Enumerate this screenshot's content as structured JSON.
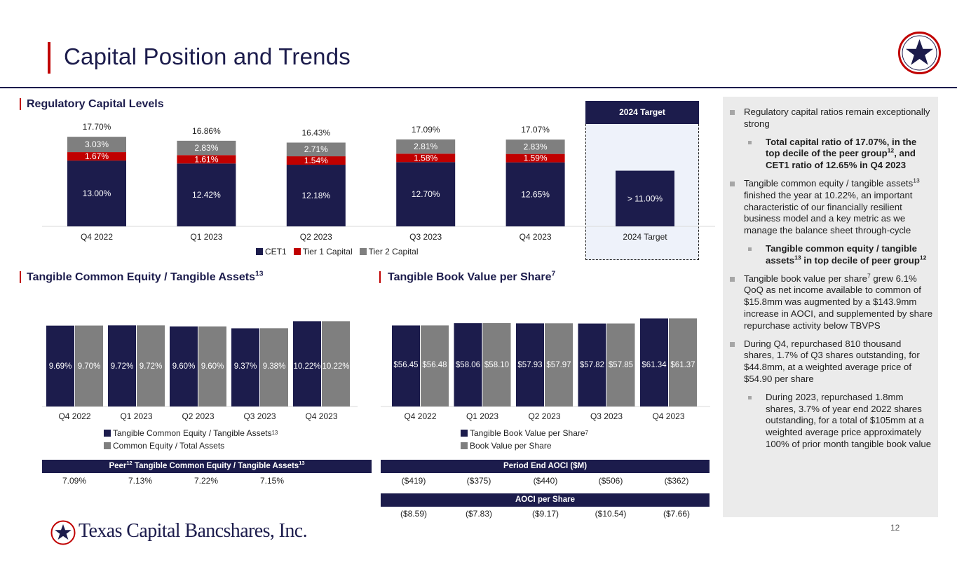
{
  "page": {
    "title": "Capital Position and Trends",
    "page_number": "12",
    "footer_company": "Texas Capital Bancshares, Inc."
  },
  "colors": {
    "navy": "#1c1c4c",
    "red": "#c00000",
    "gray": "#7f7f7f",
    "target_bg": "#eef2fa",
    "panel_bg": "#ebebeb"
  },
  "sections": {
    "regulatory": "Regulatory Capital Levels",
    "tce_title": "Tangible Common Equity / Tangible Assets",
    "tce_sup": "13",
    "tbv_title": "Tangible Book Value per Share",
    "tbv_sup": "7"
  },
  "target_header": "2024 Target",
  "chart_data": [
    {
      "type": "bar",
      "stacked": true,
      "categories": [
        "Q4 2022",
        "Q1 2023",
        "Q2 2023",
        "Q3 2023",
        "Q4 2023",
        "2024 Target"
      ],
      "series": [
        {
          "name": "CET1",
          "values": [
            13.0,
            12.42,
            12.18,
            12.7,
            12.65,
            11.0
          ],
          "labels": [
            "13.00%",
            "12.42%",
            "12.18%",
            "12.70%",
            "12.65%",
            "> 11.00%"
          ]
        },
        {
          "name": "Tier 1 Capital",
          "values": [
            1.67,
            1.61,
            1.54,
            1.58,
            1.59,
            null
          ],
          "labels": [
            "1.67%",
            "1.61%",
            "1.54%",
            "1.58%",
            "1.59%",
            ""
          ]
        },
        {
          "name": "Tier 2 Capital",
          "values": [
            3.03,
            2.83,
            2.71,
            2.81,
            2.83,
            null
          ],
          "labels": [
            "3.03%",
            "2.83%",
            "2.71%",
            "2.81%",
            "2.83%",
            ""
          ]
        }
      ],
      "totals": [
        "17.70%",
        "16.86%",
        "16.43%",
        "17.09%",
        "17.07%",
        ""
      ],
      "ylim": [
        0,
        18
      ],
      "legend": "bottom"
    },
    {
      "type": "bar",
      "categories": [
        "Q4 2022",
        "Q1 2023",
        "Q2 2023",
        "Q3 2023",
        "Q4 2023"
      ],
      "series": [
        {
          "name": "Tangible Common Equity / Tangible Assets",
          "name_sup": "13",
          "values": [
            9.69,
            9.72,
            9.6,
            9.37,
            10.22
          ],
          "labels": [
            "9.69%",
            "9.72%",
            "9.60%",
            "9.37%",
            "10.22%"
          ]
        },
        {
          "name": "Common Equity / Total Assets",
          "values": [
            9.7,
            9.72,
            9.6,
            9.38,
            10.22
          ],
          "labels": [
            "9.70%",
            "9.72%",
            "9.60%",
            "9.38%",
            "10.22%"
          ]
        }
      ],
      "ylim": [
        0,
        10.5
      ],
      "legend": "bottom"
    },
    {
      "type": "bar",
      "categories": [
        "Q4 2022",
        "Q1 2023",
        "Q2 2023",
        "Q3 2023",
        "Q4 2023"
      ],
      "series": [
        {
          "name": "Tangible Book Value per Share",
          "name_sup": "7",
          "values": [
            56.45,
            58.06,
            57.93,
            57.82,
            61.34
          ],
          "labels": [
            "$56.45",
            "$58.06",
            "$57.93",
            "$57.82",
            "$61.34"
          ]
        },
        {
          "name": "Book Value per Share",
          "values": [
            56.48,
            58.1,
            57.97,
            57.85,
            61.37
          ],
          "labels": [
            "$56.48",
            "$58.10",
            "$57.97",
            "$57.85",
            "$61.37"
          ]
        }
      ],
      "ylim": [
        0,
        63
      ],
      "legend": "bottom"
    }
  ],
  "peer_band": {
    "label": "Peer",
    "sup1": "12",
    "label_rest": " Tangible Common Equity / Tangible Assets",
    "sup2": "13",
    "values": [
      "7.09%",
      "7.13%",
      "7.22%",
      "7.15%"
    ]
  },
  "aoci_band": {
    "label": "Period End AOCI ($M)",
    "values": [
      "($419)",
      "($375)",
      "($440)",
      "($506)",
      "($362)"
    ]
  },
  "aoci_share_band": {
    "label": "AOCI per Share",
    "values": [
      "($8.59)",
      "($7.83)",
      "($9.17)",
      "($10.54)",
      "($7.66)"
    ]
  },
  "bullets": {
    "b1": "Regulatory capital ratios remain exceptionally strong",
    "b1a_pre": "Total capital ratio of 17.07%, in the top decile of the peer group",
    "b1a_sup": "12",
    "b1a_post": ", and CET1 ratio of 12.65% in Q4 2023",
    "b2_pre": "Tangible common equity / tangible assets",
    "b2_sup": "13",
    "b2_post": " finished the year at 10.22%, an important characteristic of our financially resilient business model and a key metric as we manage the balance sheet through-cycle",
    "b2a_pre": "Tangible common equity / tangible assets",
    "b2a_sup": "13",
    "b2a_mid": " in top decile of peer group",
    "b2a_sup2": "12",
    "b3_pre": "Tangible book value per share",
    "b3_sup": "7",
    "b3_post": " grew 6.1% QoQ as net income available to common of $15.8mm was augmented by a $143.9mm increase in AOCI, and supplemented by share repurchase activity below TBVPS",
    "b4": "During Q4, repurchased 810 thousand shares, 1.7% of Q3 shares outstanding, for $44.8mm, at a weighted average price of $54.90 per share",
    "b4a": "During 2023, repurchased 1.8mm shares, 3.7% of year end 2022 shares outstanding, for a total of $105mm at a weighted average price approximately 100% of prior month tangible book value"
  }
}
